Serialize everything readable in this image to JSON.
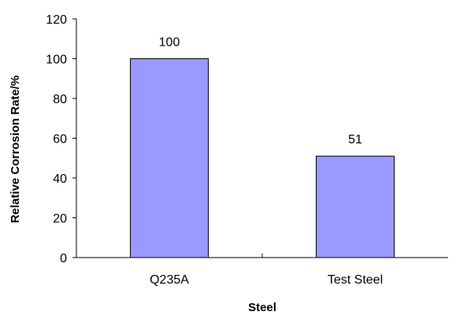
{
  "chart_data": {
    "type": "bar",
    "categories": [
      "Q235A",
      "Test Steel"
    ],
    "values": [
      100,
      51
    ],
    "data_labels": [
      "100",
      "51"
    ],
    "xlabel": "Steel",
    "ylabel": "Relative Corrosion Rate/%",
    "ylim": [
      0,
      120
    ],
    "yticks": [
      0,
      20,
      40,
      60,
      80,
      100,
      120
    ],
    "grid": false,
    "legend": "none",
    "colors": {
      "bar_fill": "#9999ff",
      "bar_stroke": "#000000",
      "axis": "#000000"
    }
  }
}
